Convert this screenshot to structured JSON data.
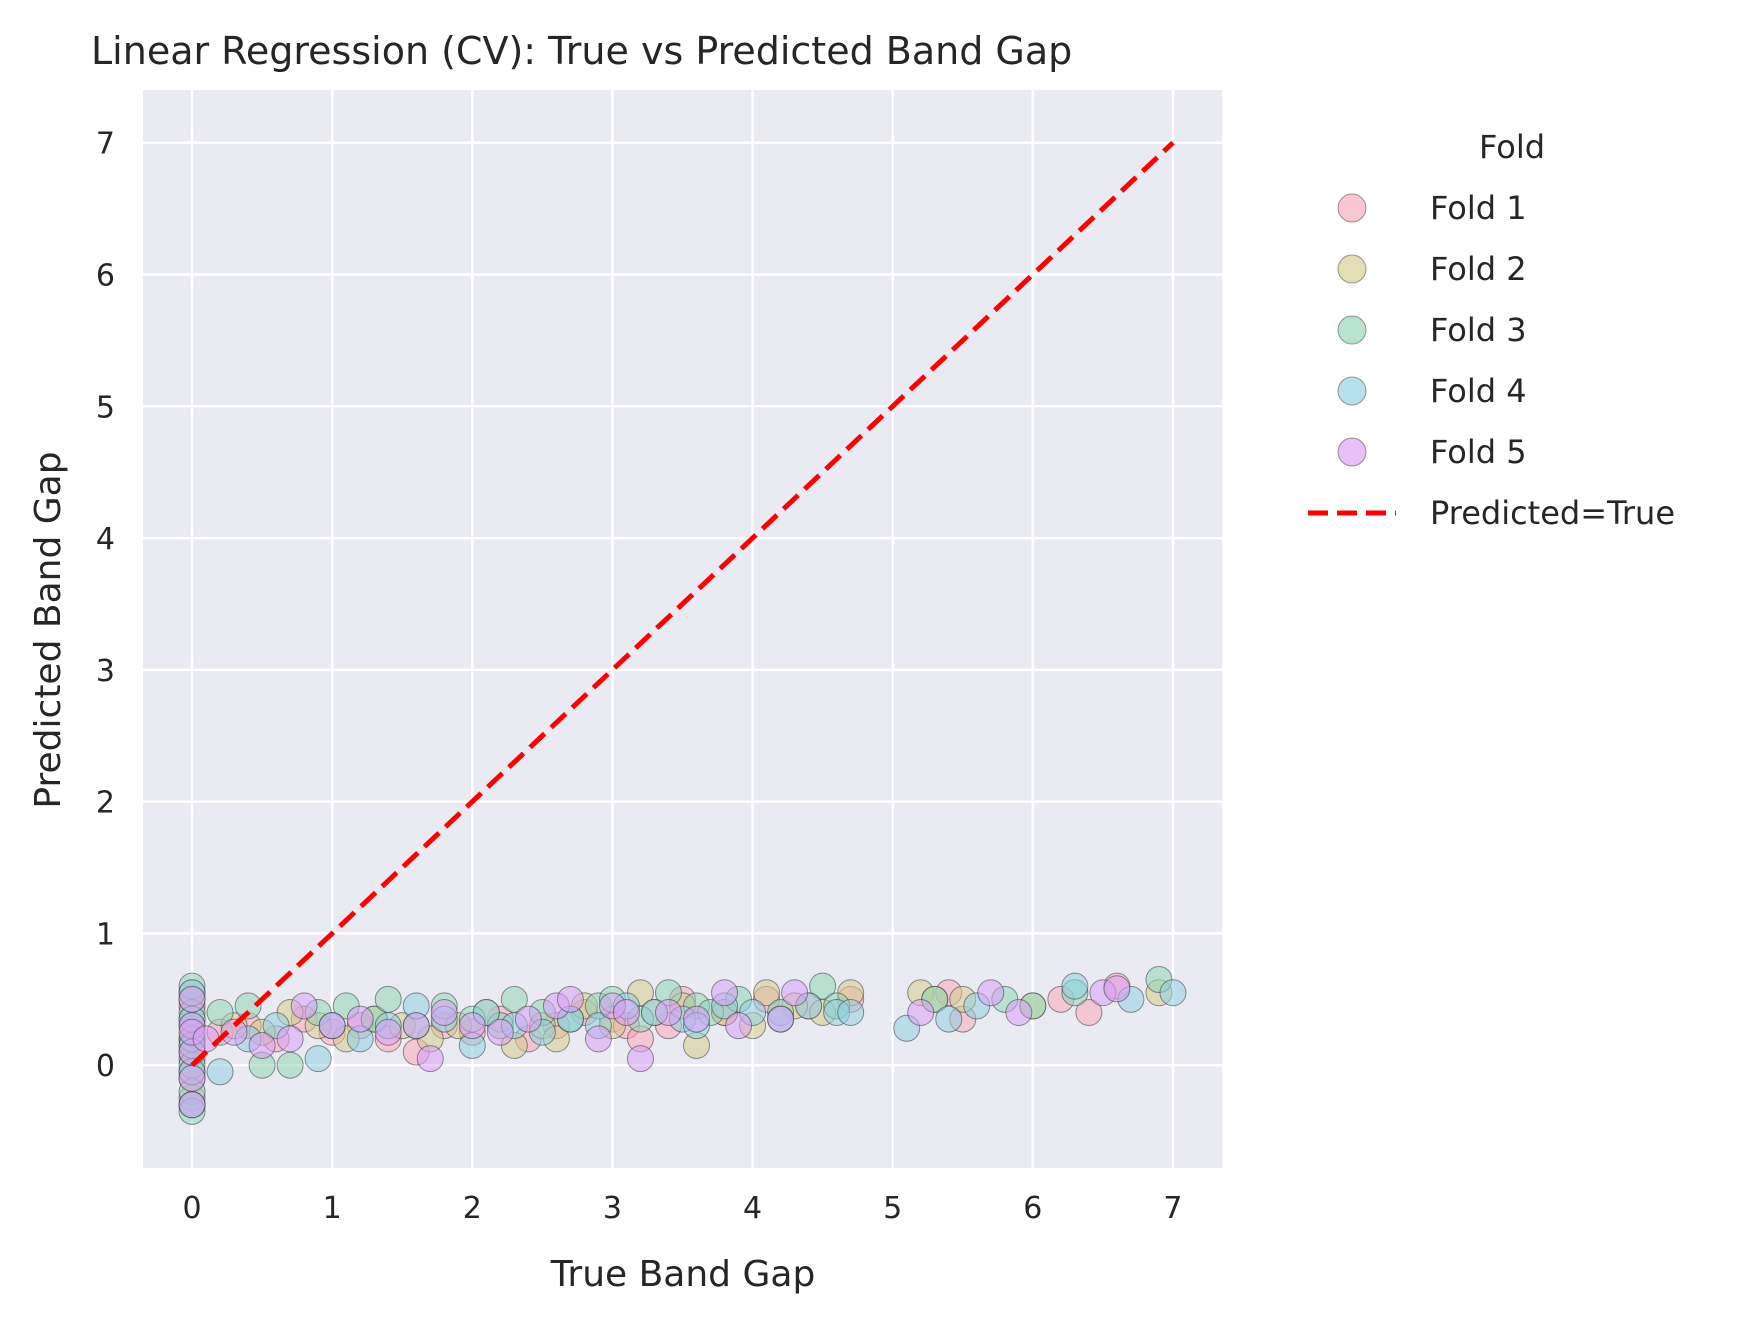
{
  "chart_data": {
    "type": "scatter",
    "title": "Linear Regression (CV): True vs Predicted Band Gap",
    "xlabel": "True Band Gap",
    "ylabel": "Predicted Band Gap",
    "xlim": [
      -0.35,
      7.35
    ],
    "ylim": [
      -0.78,
      7.4
    ],
    "xticks": [
      0,
      1,
      2,
      3,
      4,
      5,
      6,
      7
    ],
    "yticks": [
      0,
      1,
      2,
      3,
      4,
      5,
      6,
      7
    ],
    "grid": true,
    "legend": {
      "title": "Fold",
      "placement": "outside-right",
      "entries": [
        "Fold 1",
        "Fold 2",
        "Fold 3",
        "Fold 4",
        "Fold 5",
        "Predicted=True"
      ]
    },
    "reference_line": {
      "name": "Predicted=True",
      "x": [
        0,
        7
      ],
      "y": [
        0,
        7
      ],
      "color": "#ff0000",
      "style": "dashed"
    },
    "series": [
      {
        "name": "Fold 1",
        "color": "#f7a8b8",
        "points": [
          [
            0,
            0.55
          ],
          [
            0,
            0.35
          ],
          [
            0,
            0.15
          ],
          [
            0,
            -0.05
          ],
          [
            0,
            -0.25
          ],
          [
            0,
            0.45
          ],
          [
            0,
            0.05
          ],
          [
            0.2,
            0.25
          ],
          [
            0.4,
            0.3
          ],
          [
            0.6,
            0.2
          ],
          [
            0.8,
            0.35
          ],
          [
            1.0,
            0.25
          ],
          [
            1.2,
            0.3
          ],
          [
            1.4,
            0.2
          ],
          [
            1.6,
            0.1
          ],
          [
            1.8,
            0.3
          ],
          [
            2.0,
            0.25
          ],
          [
            2.2,
            0.35
          ],
          [
            2.4,
            0.2
          ],
          [
            2.6,
            0.3
          ],
          [
            2.8,
            0.4
          ],
          [
            3.0,
            0.35
          ],
          [
            3.1,
            0.3
          ],
          [
            3.2,
            0.2
          ],
          [
            3.4,
            0.3
          ],
          [
            3.5,
            0.5
          ],
          [
            3.8,
            0.4
          ],
          [
            4.1,
            0.5
          ],
          [
            4.4,
            0.45
          ],
          [
            4.7,
            0.5
          ],
          [
            5.4,
            0.55
          ],
          [
            5.5,
            0.35
          ],
          [
            6.2,
            0.5
          ],
          [
            6.4,
            0.4
          ],
          [
            6.6,
            0.6
          ]
        ]
      },
      {
        "name": "Fold 2",
        "color": "#d6cc8c",
        "points": [
          [
            0,
            0.5
          ],
          [
            0,
            0.3
          ],
          [
            0,
            0.1
          ],
          [
            0,
            -0.1
          ],
          [
            0,
            -0.3
          ],
          [
            0,
            0.2
          ],
          [
            0.3,
            0.3
          ],
          [
            0.5,
            0.25
          ],
          [
            0.7,
            0.4
          ],
          [
            0.9,
            0.3
          ],
          [
            1.1,
            0.2
          ],
          [
            1.3,
            0.35
          ],
          [
            1.5,
            0.3
          ],
          [
            1.7,
            0.2
          ],
          [
            1.9,
            0.3
          ],
          [
            2.1,
            0.4
          ],
          [
            2.3,
            0.15
          ],
          [
            2.5,
            0.3
          ],
          [
            2.6,
            0.2
          ],
          [
            2.8,
            0.45
          ],
          [
            3.0,
            0.3
          ],
          [
            3.2,
            0.55
          ],
          [
            3.3,
            0.4
          ],
          [
            3.5,
            0.45
          ],
          [
            3.6,
            0.15
          ],
          [
            3.8,
            0.4
          ],
          [
            4.0,
            0.3
          ],
          [
            4.1,
            0.55
          ],
          [
            4.3,
            0.45
          ],
          [
            4.5,
            0.4
          ],
          [
            4.7,
            0.55
          ],
          [
            5.2,
            0.55
          ],
          [
            5.3,
            0.5
          ],
          [
            5.5,
            0.5
          ],
          [
            6.0,
            0.45
          ],
          [
            6.9,
            0.55
          ]
        ]
      },
      {
        "name": "Fold 3",
        "color": "#8fd6b6",
        "points": [
          [
            0,
            0.6
          ],
          [
            0,
            0.4
          ],
          [
            0,
            0.2
          ],
          [
            0,
            0.0
          ],
          [
            0,
            -0.2
          ],
          [
            0,
            -0.35
          ],
          [
            0.2,
            0.4
          ],
          [
            0.4,
            0.45
          ],
          [
            0.5,
            0.0
          ],
          [
            0.7,
            0.0
          ],
          [
            0.9,
            0.4
          ],
          [
            1.1,
            0.45
          ],
          [
            1.3,
            0.35
          ],
          [
            1.4,
            0.5
          ],
          [
            1.6,
            0.3
          ],
          [
            1.8,
            0.45
          ],
          [
            2.0,
            0.35
          ],
          [
            2.2,
            0.3
          ],
          [
            2.3,
            0.5
          ],
          [
            2.5,
            0.4
          ],
          [
            2.7,
            0.35
          ],
          [
            2.9,
            0.45
          ],
          [
            3.0,
            0.5
          ],
          [
            3.2,
            0.35
          ],
          [
            3.4,
            0.55
          ],
          [
            3.6,
            0.45
          ],
          [
            3.7,
            0.4
          ],
          [
            3.9,
            0.5
          ],
          [
            4.2,
            0.4
          ],
          [
            4.5,
            0.6
          ],
          [
            4.6,
            0.45
          ],
          [
            5.3,
            0.5
          ],
          [
            5.8,
            0.5
          ],
          [
            6.0,
            0.45
          ],
          [
            6.3,
            0.55
          ],
          [
            6.9,
            0.65
          ]
        ]
      },
      {
        "name": "Fold 4",
        "color": "#8fcfe0",
        "points": [
          [
            0,
            0.55
          ],
          [
            0,
            0.35
          ],
          [
            0,
            0.15
          ],
          [
            0,
            -0.05
          ],
          [
            0,
            -0.3
          ],
          [
            0.2,
            -0.05
          ],
          [
            0.4,
            0.2
          ],
          [
            0.6,
            0.3
          ],
          [
            0.9,
            0.05
          ],
          [
            1.0,
            0.3
          ],
          [
            1.2,
            0.2
          ],
          [
            1.4,
            0.3
          ],
          [
            1.6,
            0.45
          ],
          [
            1.8,
            0.35
          ],
          [
            2.0,
            0.15
          ],
          [
            2.1,
            0.4
          ],
          [
            2.3,
            0.3
          ],
          [
            2.5,
            0.25
          ],
          [
            2.7,
            0.35
          ],
          [
            2.9,
            0.3
          ],
          [
            3.1,
            0.45
          ],
          [
            3.3,
            0.4
          ],
          [
            3.5,
            0.35
          ],
          [
            3.6,
            0.3
          ],
          [
            3.8,
            0.45
          ],
          [
            4.0,
            0.4
          ],
          [
            4.2,
            0.35
          ],
          [
            4.4,
            0.45
          ],
          [
            4.6,
            0.4
          ],
          [
            4.7,
            0.4
          ],
          [
            5.1,
            0.28
          ],
          [
            5.4,
            0.35
          ],
          [
            5.6,
            0.45
          ],
          [
            6.3,
            0.6
          ],
          [
            6.7,
            0.5
          ],
          [
            7.0,
            0.55
          ]
        ]
      },
      {
        "name": "Fold 5",
        "color": "#d9a0f5",
        "points": [
          [
            0,
            0.5
          ],
          [
            0,
            0.3
          ],
          [
            0,
            0.1
          ],
          [
            0,
            -0.1
          ],
          [
            0,
            -0.3
          ],
          [
            0,
            0.25
          ],
          [
            0.1,
            0.2
          ],
          [
            0.3,
            0.25
          ],
          [
            0.5,
            0.15
          ],
          [
            0.7,
            0.2
          ],
          [
            0.8,
            0.45
          ],
          [
            1.0,
            0.3
          ],
          [
            1.2,
            0.35
          ],
          [
            1.4,
            0.25
          ],
          [
            1.6,
            0.3
          ],
          [
            1.7,
            0.05
          ],
          [
            1.8,
            0.4
          ],
          [
            2.0,
            0.3
          ],
          [
            2.2,
            0.25
          ],
          [
            2.4,
            0.35
          ],
          [
            2.6,
            0.45
          ],
          [
            2.7,
            0.5
          ],
          [
            2.9,
            0.2
          ],
          [
            3.0,
            0.45
          ],
          [
            3.1,
            0.4
          ],
          [
            3.2,
            0.05
          ],
          [
            3.4,
            0.4
          ],
          [
            3.6,
            0.35
          ],
          [
            3.8,
            0.55
          ],
          [
            3.9,
            0.3
          ],
          [
            4.2,
            0.35
          ],
          [
            4.3,
            0.55
          ],
          [
            5.2,
            0.4
          ],
          [
            5.7,
            0.55
          ],
          [
            5.9,
            0.4
          ],
          [
            6.5,
            0.55
          ],
          [
            6.6,
            0.58
          ]
        ]
      }
    ]
  }
}
